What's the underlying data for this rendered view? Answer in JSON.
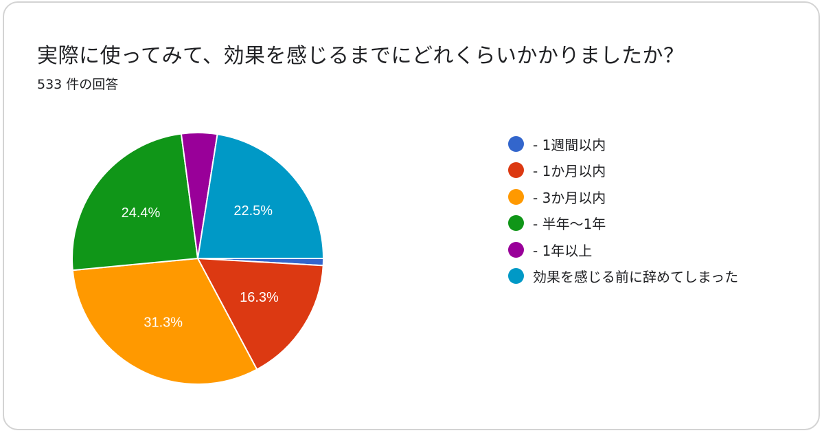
{
  "header": {
    "title": "実際に使ってみて、効果を感じるまでにどれくらいかかりましたか？",
    "response_count": "533 件の回答"
  },
  "chart_data": {
    "type": "pie",
    "title": "実際に使ってみて、効果を感じるまでにどれくらいかかりましたか？",
    "subtitle": "533 件の回答",
    "legend_position": "right",
    "start_angle": "top, clockwise",
    "categories": [
      "- 1週間以内",
      "- 1か月以内",
      "- 3か月以内",
      "- 半年〜1年",
      "- 1年以上",
      "効果を感じる前に辞めてしまった"
    ],
    "values": [
      0.9,
      16.3,
      31.3,
      24.4,
      4.6,
      22.5
    ],
    "value_unit": "%",
    "data_labels": [
      "",
      "16.3%",
      "31.3%",
      "24.4%",
      "",
      "22.5%"
    ],
    "colors": [
      "#3366cc",
      "#dc3912",
      "#ff9900",
      "#109618",
      "#990099",
      "#0099c6"
    ]
  }
}
